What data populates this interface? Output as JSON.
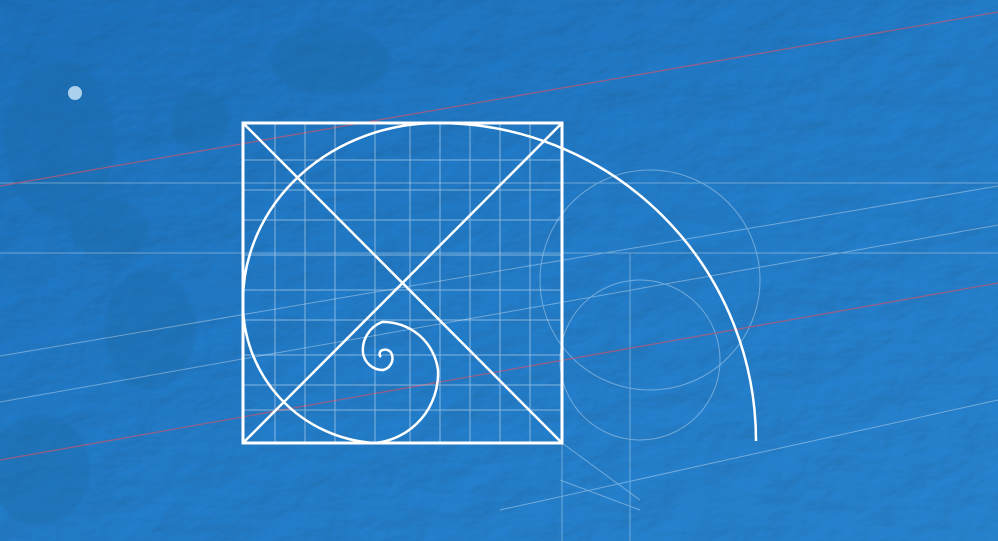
{
  "scene": {
    "subject": "seafloor-relief-with-golden-ratio-overlay",
    "colors": {
      "water_light": "#3ea4e3",
      "water_mid": "#2f95d6",
      "water_dark": "#1f7bbd",
      "ridge_shadow": "#1b6aa6",
      "overlay_line": "#ffffff",
      "red_line": "#b05a7a"
    },
    "overlay": {
      "shapes": [
        "square-frame",
        "diagonal-x",
        "grid",
        "golden-spiral",
        "outer-arc",
        "construction-lines"
      ]
    }
  }
}
